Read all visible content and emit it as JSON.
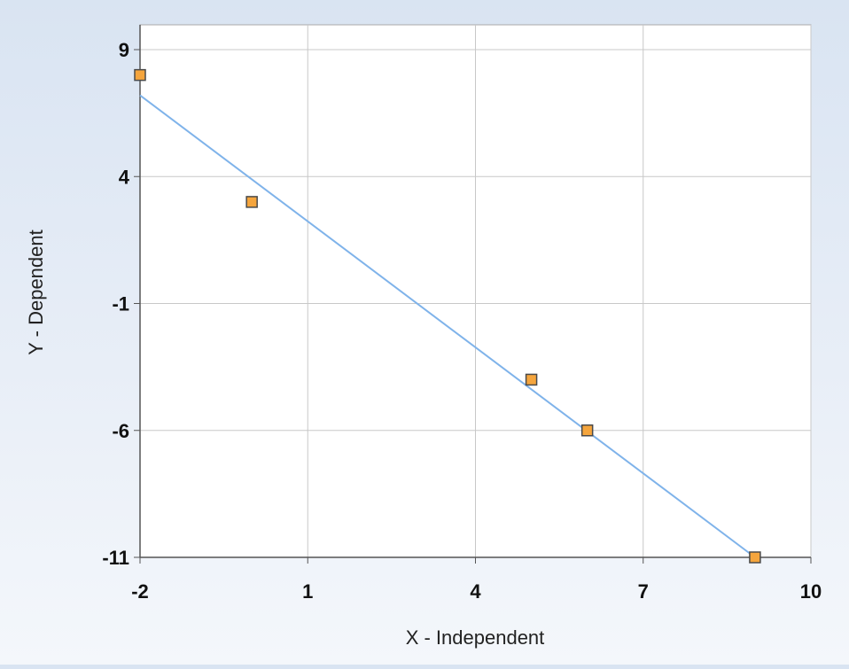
{
  "chart_data": {
    "type": "scatter",
    "title": "",
    "xlabel": "X - Independent",
    "ylabel": "Y - Dependent",
    "xlim": [
      -2,
      10
    ],
    "ylim": [
      -11,
      9
    ],
    "x_ticks": [
      -2,
      1,
      4,
      7,
      10
    ],
    "y_ticks": [
      9,
      4,
      -1,
      -6,
      -11
    ],
    "x_tick_labels": [
      "-2",
      "1",
      "4",
      "7",
      "10"
    ],
    "y_tick_labels": [
      "9",
      "4",
      "-1",
      "-6",
      "-11"
    ],
    "grid": true,
    "series": [
      {
        "type": "scatter",
        "x": [
          -2,
          0,
          5,
          6,
          9
        ],
        "y": [
          8,
          3,
          -4,
          -6,
          -11
        ],
        "color": "#f5a53d",
        "edge_color": "#4a4a4a",
        "marker": "square"
      },
      {
        "type": "line",
        "x": [
          -2,
          9
        ],
        "y": [
          7.2,
          -11
        ],
        "color": "#7fb3ea"
      }
    ],
    "colors": {
      "plot_background": "#ffffff",
      "grid": "#c8c8c8",
      "axis": "#555555"
    }
  }
}
